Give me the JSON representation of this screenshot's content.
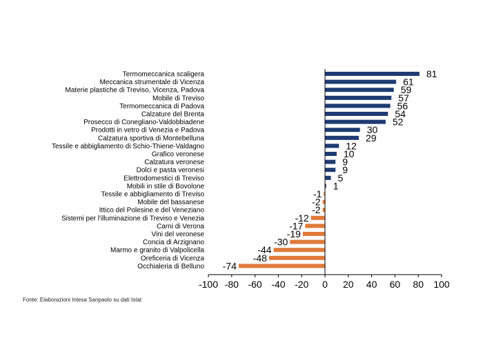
{
  "colors": {
    "positive": "#1f3b73",
    "negative": "#e07a3a",
    "axis": "#000000"
  },
  "source": "Fonte: Elaborazioni Intesa Sanpaolo su dati Istat",
  "chart_data": {
    "type": "bar",
    "orientation": "horizontal",
    "xlim": [
      -100,
      100
    ],
    "xticks": [
      "-100",
      "-80",
      "-60",
      "-40",
      "-20",
      "0",
      "20",
      "40",
      "60",
      "80",
      "100"
    ],
    "grid": false,
    "categories": [
      "Termomeccanica scaligera",
      "Meccanica strumentale di Vicenza",
      "Materie plastiche di Treviso, Vicenza, Padova",
      "Mobile di Treviso",
      "Termomeccanica di Padova",
      "Calzature del Brenta",
      "Prosecco di Conegliano-Valdobbiadene",
      "Prodotti in vetro di Venezia e Padova",
      "Calzatura sportiva di Montebelluna",
      "Tessile e abbigliamento di Schio-Thiene-Valdagno",
      "Grafico veronese",
      "Calzatura veronese",
      "Dolci e pasta veronesi",
      "Elettrodomestici di Treviso",
      "Mobili in stile di Bovolone",
      "Tessile e abbigliamento di Treviso",
      "Mobile del bassanese",
      "Ittico del Polesine e del Veneziano",
      "Sistemi per l'illuminazione di Treviso e Venezia",
      "Carni di Verona",
      "Vini del veronese",
      "Concia di Arzignano",
      "Marmo e granito di Valpolicella",
      "Oreficeria di Vicenza",
      "Occhialeria di Belluno"
    ],
    "values": [
      81,
      61,
      59,
      57,
      56,
      54,
      52,
      30,
      29,
      12,
      10,
      9,
      9,
      5,
      1,
      -1,
      -2,
      -2,
      -12,
      -17,
      -19,
      -30,
      -44,
      -48,
      -74
    ]
  }
}
